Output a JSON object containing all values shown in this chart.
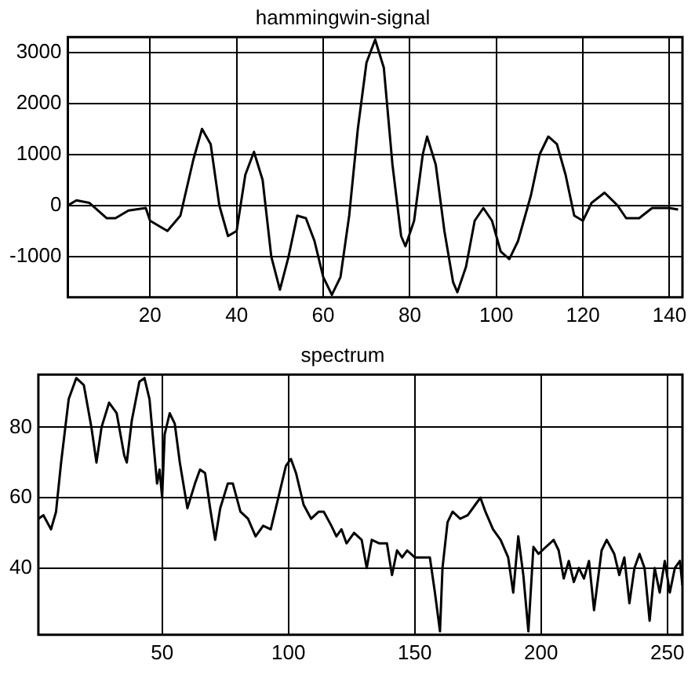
{
  "chart_data": [
    {
      "type": "line",
      "title": "hammingwin-signal",
      "xlim": [
        1,
        143
      ],
      "ylim": [
        -1800,
        3300
      ],
      "xticks": [
        20,
        40,
        60,
        80,
        100,
        120,
        140
      ],
      "yticks": [
        -1000,
        0,
        1000,
        2000,
        3000
      ],
      "grid": true,
      "line_style": "solid",
      "marker": "none",
      "series": [
        {
          "color": "#000000",
          "x": [
            1,
            3,
            6,
            10,
            12,
            15,
            19,
            20,
            24,
            27,
            30,
            32,
            34,
            36,
            38,
            40,
            42,
            44,
            46,
            48,
            50,
            52,
            54,
            56,
            58,
            60,
            62,
            64,
            66,
            68,
            70,
            72,
            74,
            76,
            78,
            79,
            81,
            83,
            84,
            86,
            88,
            90,
            91,
            93,
            95,
            97,
            99,
            101,
            103,
            105,
            108,
            110,
            112,
            114,
            116,
            118,
            120,
            122,
            125,
            128,
            130,
            133,
            136,
            140,
            142
          ],
          "values": [
            0,
            100,
            50,
            -250,
            -250,
            -100,
            -50,
            -300,
            -500,
            -200,
            900,
            1500,
            1200,
            0,
            -600,
            -500,
            600,
            1050,
            500,
            -1000,
            -1650,
            -1000,
            -200,
            -250,
            -700,
            -1400,
            -1750,
            -1400,
            -200,
            1500,
            2800,
            3250,
            2700,
            800,
            -600,
            -800,
            -300,
            1000,
            1350,
            800,
            -500,
            -1500,
            -1700,
            -1200,
            -300,
            -50,
            -300,
            -900,
            -1050,
            -700,
            200,
            1000,
            1350,
            1200,
            600,
            -200,
            -300,
            50,
            250,
            0,
            -250,
            -250,
            -50,
            -50,
            -80
          ]
        }
      ]
    },
    {
      "type": "line",
      "title": "spectrum",
      "xlim": [
        1,
        256
      ],
      "ylim": [
        21,
        95
      ],
      "xticks": [
        50,
        100,
        150,
        200,
        250
      ],
      "yticks": [
        40,
        60,
        80
      ],
      "grid": true,
      "line_style": "solid",
      "marker": "none",
      "series": [
        {
          "color": "#000000",
          "x": [
            1,
            3,
            6,
            8,
            10,
            13,
            16,
            19,
            22,
            24,
            26,
            29,
            32,
            35,
            36,
            38,
            41,
            43,
            45,
            47,
            48,
            49,
            50,
            51,
            53,
            55,
            57,
            60,
            63,
            65,
            67,
            69,
            71,
            73,
            76,
            78,
            81,
            84,
            87,
            90,
            93,
            96,
            99,
            101,
            103,
            106,
            109,
            112,
            114,
            117,
            119,
            121,
            123,
            126,
            129,
            131,
            133,
            136,
            139,
            141,
            143,
            145,
            147,
            150,
            153,
            156,
            158,
            160,
            161,
            163,
            165,
            168,
            171,
            174,
            176,
            178,
            181,
            184,
            187,
            189,
            191,
            193,
            195,
            197,
            199,
            202,
            205,
            207,
            209,
            211,
            213,
            215,
            217,
            219,
            221,
            224,
            226,
            229,
            231,
            233,
            235,
            237,
            239,
            241,
            243,
            245,
            247,
            249,
            251,
            253,
            255,
            256
          ],
          "values": [
            54,
            55,
            51,
            56,
            70,
            88,
            94,
            92,
            80,
            70,
            80,
            87,
            84,
            72,
            70,
            82,
            93,
            94,
            88,
            72,
            64,
            68,
            60,
            78,
            84,
            81,
            70,
            57,
            64,
            68,
            67,
            57,
            48,
            57,
            64,
            64,
            56,
            54,
            49,
            52,
            51,
            60,
            69,
            71,
            67,
            58,
            54,
            56,
            56,
            52,
            49,
            51,
            47,
            50,
            48,
            40,
            48,
            47,
            47,
            38,
            45,
            43,
            45,
            43,
            43,
            43,
            33,
            22,
            40,
            53,
            56,
            54,
            55,
            58,
            60,
            56,
            51,
            48,
            43,
            33,
            49,
            38,
            22,
            46,
            44,
            46,
            48,
            45,
            37,
            42,
            36,
            40,
            37,
            42,
            28,
            45,
            48,
            44,
            38,
            43,
            30,
            40,
            44,
            40,
            25,
            40,
            33,
            42,
            33,
            40,
            42,
            35
          ]
        }
      ]
    }
  ]
}
